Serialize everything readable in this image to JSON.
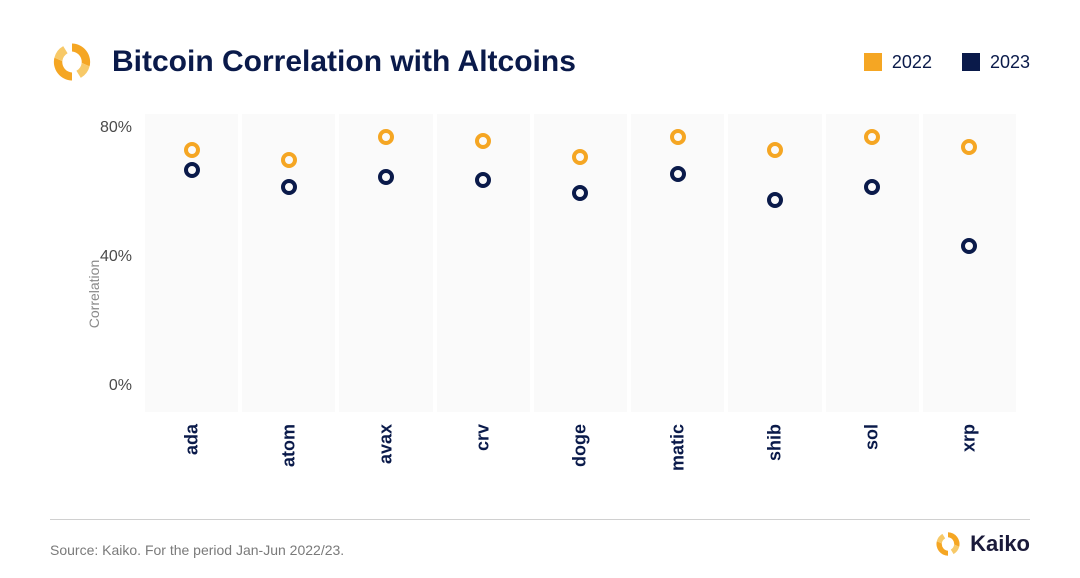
{
  "title": "Bitcoin Correlation with Altcoins",
  "legend": {
    "items": [
      {
        "label": "2022",
        "color": "#f5a623",
        "shape": "square"
      },
      {
        "label": "2023",
        "color": "#0a1a4a",
        "shape": "square"
      }
    ]
  },
  "chart": {
    "type": "scatter-categorical",
    "background_color": "#fafafa",
    "page_background": "#ffffff",
    "ylabel": "Correlation",
    "ylabel_fontsize": 14,
    "ylabel_color": "#8a8a8a",
    "ylim": [
      0,
      90
    ],
    "yticks": [
      0,
      40,
      80
    ],
    "ytick_suffix": "%",
    "ytick_fontsize": 16,
    "ytick_color": "#4a4a4a",
    "xtick_fontsize": 18,
    "xtick_fontweight": 700,
    "xtick_color": "#0a1a4a",
    "xtick_rotation": -90,
    "categories": [
      "ada",
      "atom",
      "avax",
      "crv",
      "doge",
      "matic",
      "shib",
      "sol",
      "xrp"
    ],
    "series": [
      {
        "name": "2022",
        "color": "#f5a623",
        "marker_size": 16,
        "marker_border": 4,
        "values": [
          79,
          76,
          83,
          82,
          77,
          83,
          79,
          83,
          80
        ]
      },
      {
        "name": "2023",
        "color": "#0a1a4a",
        "marker_size": 16,
        "marker_border": 4,
        "values": [
          73,
          68,
          71,
          70,
          66,
          72,
          64,
          68,
          50
        ]
      }
    ]
  },
  "source": "Source: Kaiko. For the period Jan-Jun 2022/23.",
  "brand": {
    "name": "Kaiko",
    "logo_primary": "#f5a623",
    "logo_secondary": "#f7c968"
  }
}
